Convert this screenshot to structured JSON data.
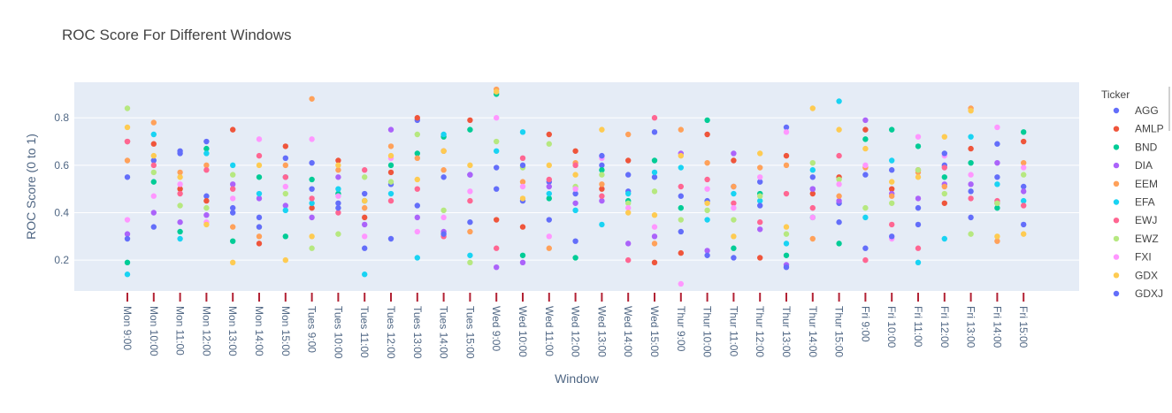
{
  "chart_data": {
    "type": "scatter",
    "title": "ROC Score For Different Windows",
    "xlabel": "Window",
    "ylabel": "ROC Score (0 to 1)",
    "ylim": [
      0.07,
      0.95
    ],
    "yticks": [
      "0.2",
      "0.4",
      "0.6",
      "0.8"
    ],
    "grid": true,
    "legend_title": "Ticker",
    "legend_position": "right",
    "categories": [
      "Mon 9:00",
      "Mon 10:00",
      "Mon 11:00",
      "Mon 12:00",
      "Mon 13:00",
      "Mon 14:00",
      "Mon 15:00",
      "Tues 9:00",
      "Tues 10:00",
      "Tues 11:00",
      "Tues 12:00",
      "Tues 13:00",
      "Tues 14:00",
      "Tues 15:00",
      "Wed 9:00",
      "Wed 10:00",
      "Wed 11:00",
      "Wed 12:00",
      "Wed 13:00",
      "Wed 14:00",
      "Wed 15:00",
      "Thur 9:00",
      "Thur 10:00",
      "Thur 11:00",
      "Thur 12:00",
      "Thur 13:00",
      "Thur 14:00",
      "Thur 15:00",
      "Fri 9:00",
      "Fri 10:00",
      "Fri 11:00",
      "Fri 12:00",
      "Fri 13:00",
      "Fri 14:00",
      "Fri 15:00"
    ],
    "series": [
      {
        "name": "AGG",
        "color": "#636efa",
        "values": [
          0.55,
          0.62,
          0.65,
          0.47,
          0.42,
          0.38,
          0.55,
          0.5,
          0.44,
          0.48,
          0.52,
          0.79,
          0.55,
          0.56,
          0.5,
          0.45,
          0.53,
          0.48,
          0.6,
          0.49,
          0.55,
          0.47,
          0.45,
          0.51,
          0.53,
          0.76,
          0.5,
          0.44,
          0.56,
          0.58,
          0.42,
          0.6,
          0.49,
          0.55,
          0.51
        ]
      },
      {
        "name": "AMLP",
        "color": "#EF553B",
        "values": [
          0.7,
          0.69,
          0.5,
          0.45,
          0.75,
          0.27,
          0.68,
          0.42,
          0.62,
          0.38,
          0.57,
          0.8,
          0.66,
          0.79,
          0.37,
          0.34,
          0.73,
          0.66,
          0.5,
          0.62,
          0.19,
          0.23,
          0.73,
          0.62,
          0.21,
          0.64,
          0.48,
          0.55,
          0.75,
          0.5,
          0.58,
          0.44,
          0.67,
          0.44,
          0.7
        ]
      },
      {
        "name": "BND",
        "color": "#00cc96",
        "values": [
          0.19,
          0.53,
          0.32,
          0.67,
          0.28,
          0.55,
          0.3,
          0.54,
          0.48,
          0.45,
          0.6,
          0.65,
          0.72,
          0.75,
          0.9,
          0.22,
          0.46,
          0.21,
          0.58,
          0.45,
          0.62,
          0.42,
          0.79,
          0.25,
          0.48,
          0.22,
          0.38,
          0.27,
          0.71,
          0.75,
          0.68,
          0.55,
          0.61,
          0.42,
          0.74
        ]
      },
      {
        "name": "DIA",
        "color": "#ab63fa",
        "values": [
          0.31,
          0.4,
          0.36,
          0.39,
          0.52,
          0.46,
          0.43,
          0.38,
          0.55,
          0.35,
          0.75,
          0.38,
          0.32,
          0.56,
          0.17,
          0.19,
          0.51,
          0.44,
          0.45,
          0.27,
          0.3,
          0.65,
          0.24,
          0.65,
          0.33,
          0.18,
          0.5,
          0.45,
          0.79,
          0.48,
          0.46,
          0.52,
          0.52,
          0.61,
          0.49
        ]
      },
      {
        "name": "EEM",
        "color": "#FFA15A",
        "values": [
          0.62,
          0.78,
          0.57,
          0.6,
          0.34,
          0.3,
          0.6,
          0.88,
          0.58,
          0.42,
          0.68,
          0.63,
          0.58,
          0.32,
          0.92,
          0.53,
          0.25,
          0.61,
          0.52,
          0.73,
          0.27,
          0.75,
          0.61,
          0.51,
          0.59,
          0.6,
          0.29,
          0.47,
          0.59,
          0.47,
          0.57,
          0.51,
          0.84,
          0.28,
          0.61
        ]
      },
      {
        "name": "EFA",
        "color": "#19d3f3",
        "values": [
          0.14,
          0.73,
          0.29,
          0.65,
          0.6,
          0.48,
          0.41,
          0.44,
          0.5,
          0.14,
          0.48,
          0.21,
          0.73,
          0.22,
          0.66,
          0.74,
          0.48,
          0.41,
          0.35,
          0.48,
          0.57,
          0.59,
          0.37,
          0.48,
          0.45,
          0.27,
          0.58,
          0.87,
          0.38,
          0.62,
          0.19,
          0.29,
          0.72,
          0.52,
          0.45
        ]
      },
      {
        "name": "EWJ",
        "color": "#FF6692",
        "values": [
          0.7,
          0.6,
          0.48,
          0.58,
          0.5,
          0.64,
          0.55,
          0.46,
          0.4,
          0.58,
          0.45,
          0.5,
          0.3,
          0.45,
          0.25,
          0.63,
          0.54,
          0.6,
          0.47,
          0.2,
          0.8,
          0.51,
          0.54,
          0.44,
          0.36,
          0.48,
          0.42,
          0.64,
          0.2,
          0.35,
          0.25,
          0.59,
          0.46,
          0.45,
          0.43
        ]
      },
      {
        "name": "EWZ",
        "color": "#B6E880",
        "values": [
          0.84,
          0.57,
          0.43,
          0.42,
          0.56,
          0.34,
          0.48,
          0.25,
          0.31,
          0.55,
          0.53,
          0.73,
          0.41,
          0.19,
          0.7,
          0.59,
          0.69,
          0.51,
          0.56,
          0.44,
          0.49,
          0.37,
          0.41,
          0.37,
          0.47,
          0.31,
          0.61,
          0.54,
          0.42,
          0.44,
          0.58,
          0.48,
          0.31,
          0.44,
          0.56
        ]
      },
      {
        "name": "FXI",
        "color": "#FF97FF",
        "values": [
          0.37,
          0.47,
          0.52,
          0.36,
          0.46,
          0.71,
          0.51,
          0.71,
          0.47,
          0.3,
          0.63,
          0.32,
          0.38,
          0.49,
          0.8,
          0.51,
          0.3,
          0.5,
          0.63,
          0.42,
          0.34,
          0.1,
          0.5,
          0.42,
          0.55,
          0.74,
          0.38,
          0.52,
          0.6,
          0.29,
          0.72,
          0.64,
          0.56,
          0.76,
          0.59
        ]
      },
      {
        "name": "GDX",
        "color": "#FECB52",
        "values": [
          0.76,
          0.64,
          0.55,
          0.35,
          0.19,
          0.6,
          0.2,
          0.3,
          0.6,
          0.45,
          0.64,
          0.54,
          0.66,
          0.6,
          0.91,
          0.46,
          0.6,
          0.56,
          0.75,
          0.4,
          0.39,
          0.64,
          0.44,
          0.3,
          0.65,
          0.34,
          0.84,
          0.75,
          0.67,
          0.53,
          0.55,
          0.72,
          0.83,
          0.3,
          0.31
        ]
      },
      {
        "name": "GDXJ",
        "color": "#636efa",
        "values": [
          0.29,
          0.34,
          0.66,
          0.7,
          0.4,
          0.34,
          0.63,
          0.61,
          0.42,
          0.25,
          0.29,
          0.43,
          0.31,
          0.36,
          0.59,
          0.6,
          0.37,
          0.28,
          0.64,
          0.56,
          0.74,
          0.32,
          0.22,
          0.21,
          0.43,
          0.17,
          0.55,
          0.36,
          0.25,
          0.3,
          0.35,
          0.65,
          0.38,
          0.69,
          0.35
        ]
      }
    ]
  }
}
